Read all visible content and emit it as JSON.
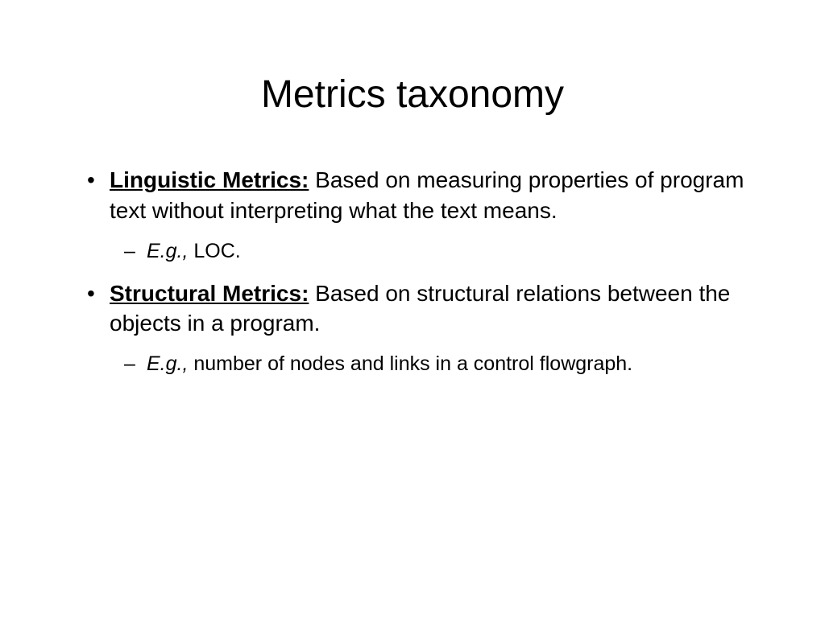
{
  "title": "Metrics taxonomy",
  "bullets": [
    {
      "label": "Linguistic Metrics:",
      "body": "  Based on measuring properties of program text without interpreting what the text means.",
      "sub_eg": "E.g.,",
      "sub_body": "  LOC."
    },
    {
      "label": "Structural Metrics:",
      "body": "  Based on structural relations between  the objects in a program.",
      "sub_eg": "E.g.,",
      "sub_body": " number of nodes and links in a control flowgraph."
    }
  ],
  "style": {
    "background_color": "#ffffff",
    "text_color": "#000000",
    "title_fontsize": 48,
    "body_fontsize": 28,
    "sub_fontsize": 25,
    "font_family": "Arial"
  }
}
